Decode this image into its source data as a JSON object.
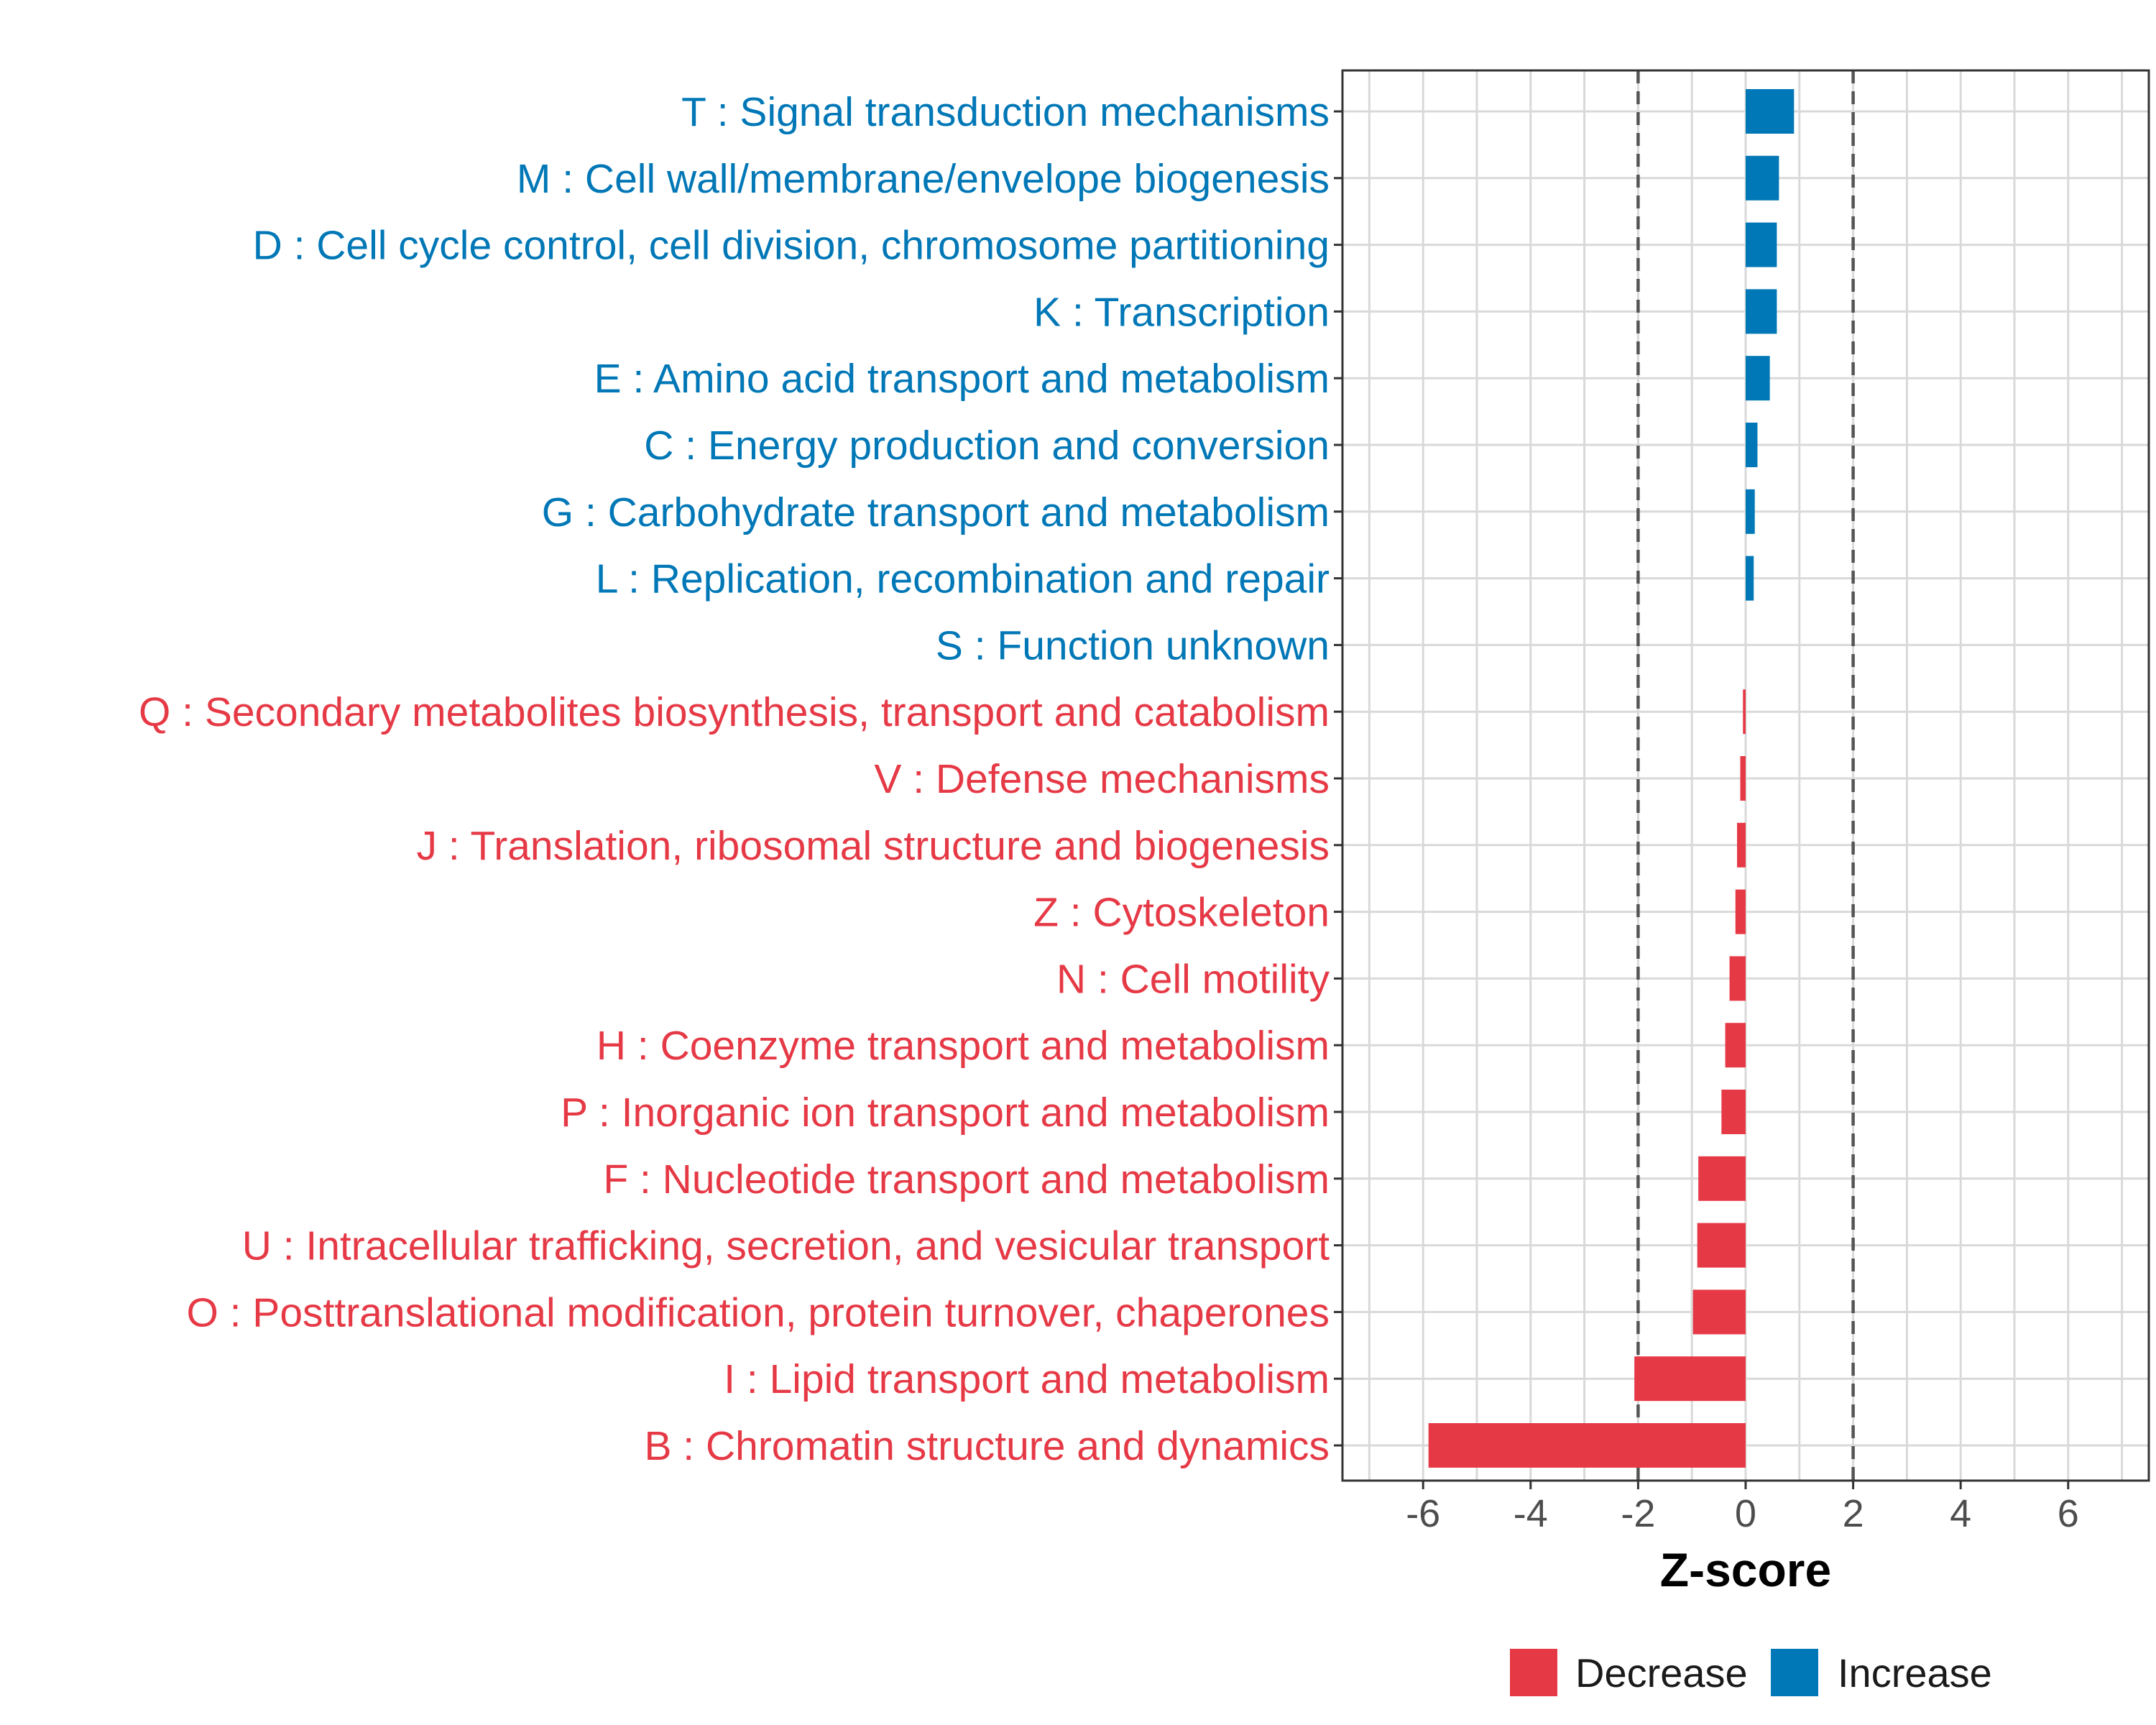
{
  "chart_data": {
    "type": "bar",
    "orientation": "horizontal",
    "xlabel": "Z-score",
    "xlim": [
      -7.5,
      7.5
    ],
    "xticks": [
      -6,
      -4,
      -2,
      0,
      2,
      4,
      6
    ],
    "xtick_labels": [
      "-6",
      "-4",
      "-2",
      "0",
      "2",
      "4",
      "6"
    ],
    "reference_lines": [
      -2,
      2
    ],
    "grid": true,
    "legend_position": "bottom",
    "legend": [
      {
        "name": "Decrease",
        "color": "#E63946"
      },
      {
        "name": "Increase",
        "color": "#0077B6"
      }
    ],
    "categories": [
      "T : Signal transduction mechanisms",
      "M : Cell wall/membrane/envelope biogenesis",
      "D : Cell cycle control, cell division, chromosome partitioning",
      "K : Transcription",
      "E : Amino acid transport and metabolism",
      "C : Energy production and conversion",
      "G : Carbohydrate transport and metabolism",
      "L : Replication, recombination and repair",
      "S : Function unknown",
      "Q : Secondary metabolites biosynthesis, transport and catabolism",
      "V : Defense mechanisms",
      "J : Translation, ribosomal structure and biogenesis",
      "Z : Cytoskeleton",
      "N : Cell motility",
      "H : Coenzyme transport and metabolism",
      "P : Inorganic ion transport and metabolism",
      "F : Nucleotide transport and metabolism",
      "U : Intracellular trafficking, secretion, and vesicular transport",
      "O : Posttranslational modification, protein turnover, chaperones",
      "I : Lipid transport and metabolism",
      "B : Chromatin structure and dynamics"
    ],
    "values": [
      0.9,
      0.62,
      0.58,
      0.58,
      0.45,
      0.22,
      0.17,
      0.15,
      0.0,
      -0.05,
      -0.1,
      -0.16,
      -0.19,
      -0.3,
      -0.38,
      -0.45,
      -0.88,
      -0.9,
      -0.98,
      -2.07,
      -5.9
    ],
    "direction": [
      "Increase",
      "Increase",
      "Increase",
      "Increase",
      "Increase",
      "Increase",
      "Increase",
      "Increase",
      "Increase",
      "Decrease",
      "Decrease",
      "Decrease",
      "Decrease",
      "Decrease",
      "Decrease",
      "Decrease",
      "Decrease",
      "Decrease",
      "Decrease",
      "Decrease",
      "Decrease"
    ]
  }
}
